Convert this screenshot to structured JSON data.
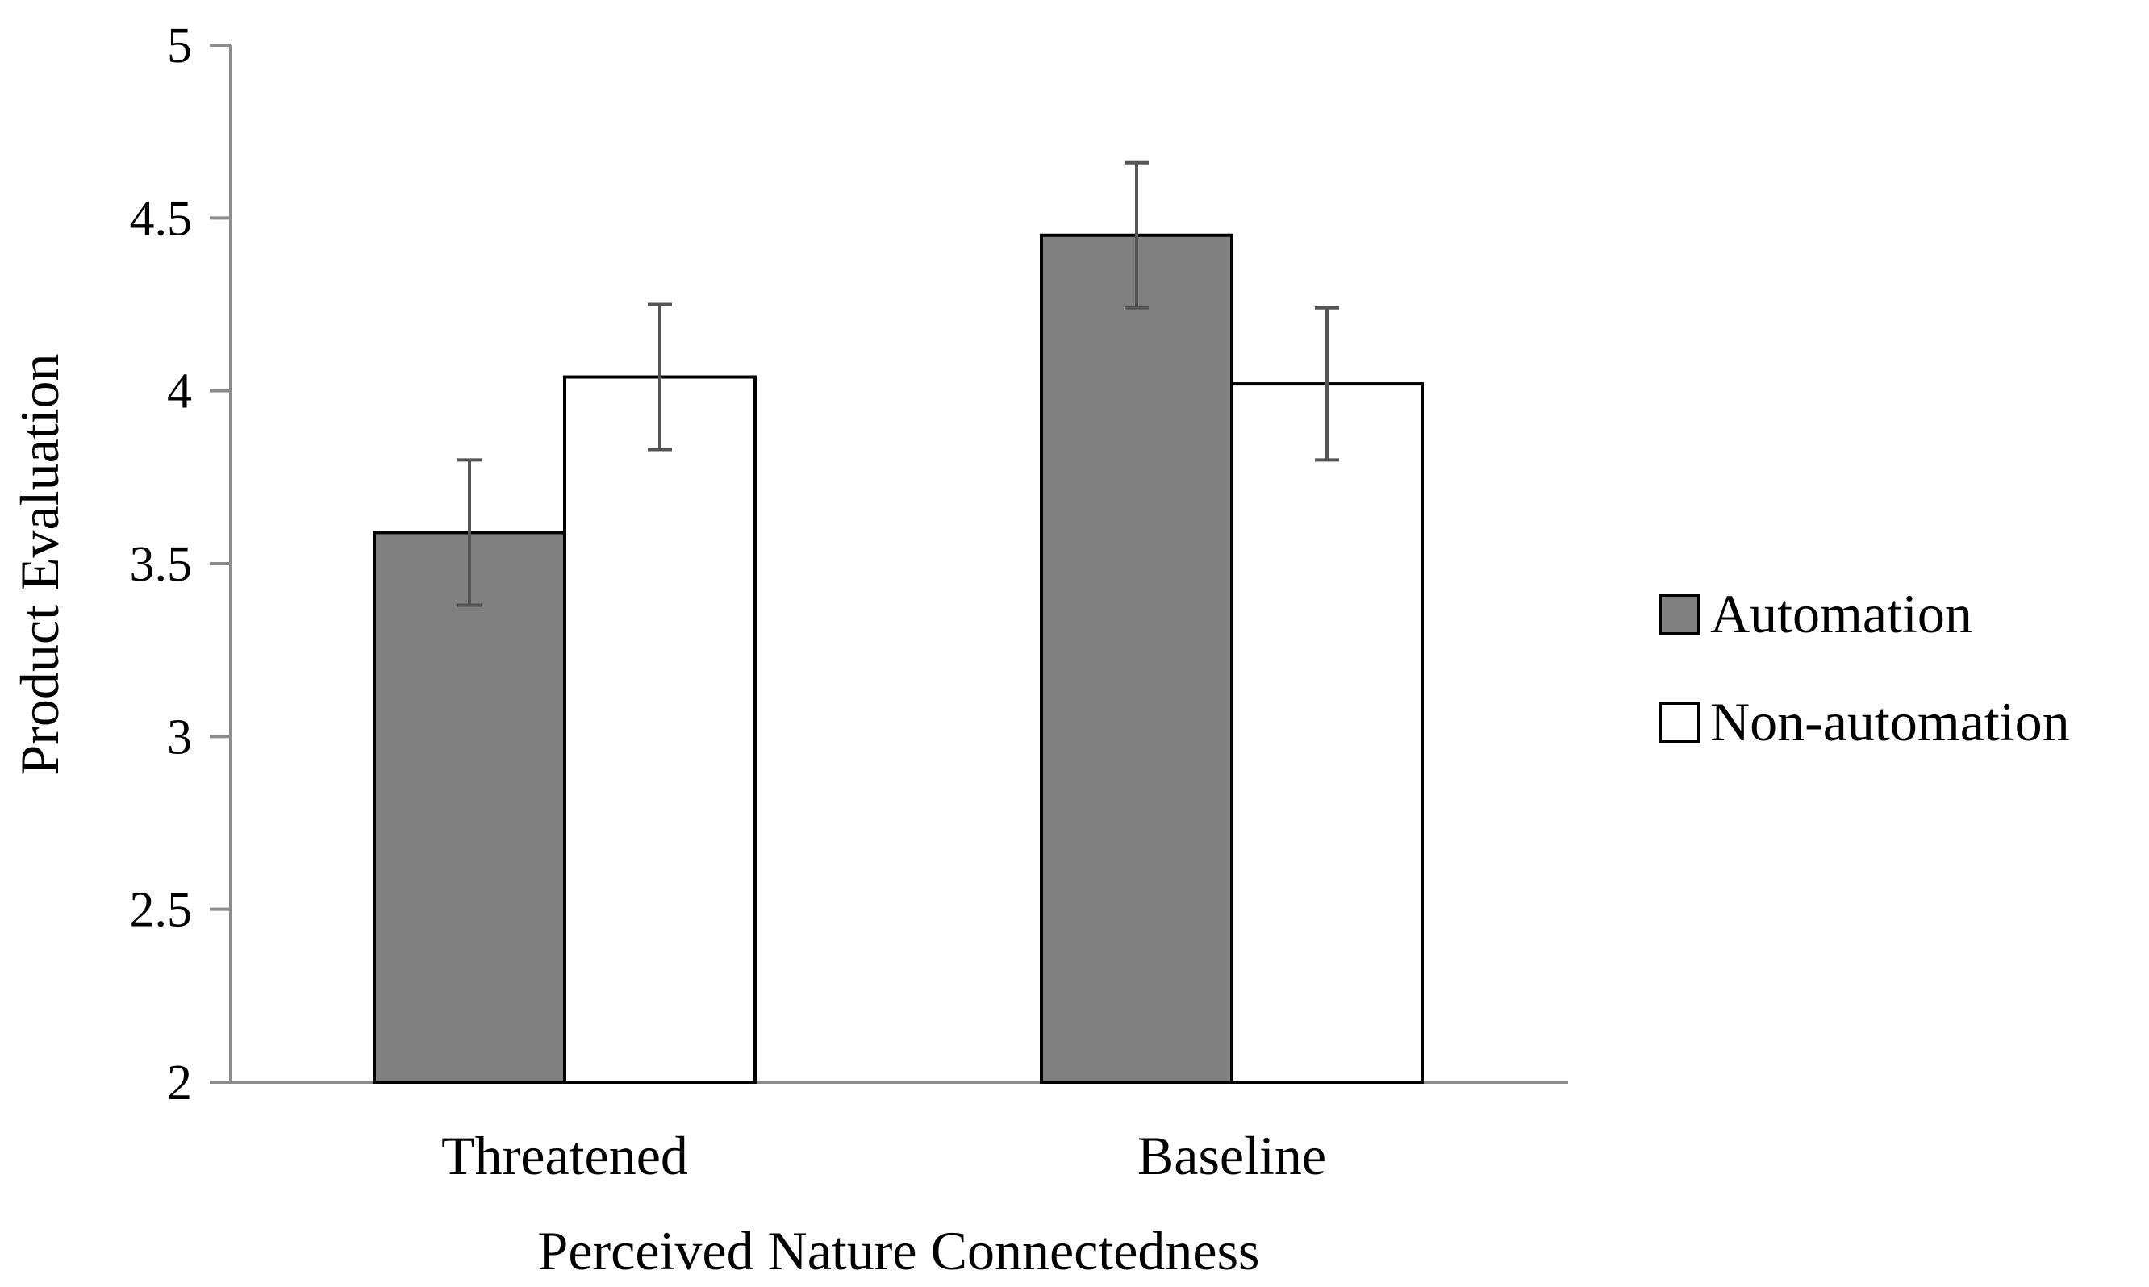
{
  "chart_data": {
    "type": "bar",
    "categories": [
      "Threatened",
      "Baseline"
    ],
    "series": [
      {
        "name": "Automation",
        "values": [
          3.59,
          4.45
        ],
        "errors": [
          0.21,
          0.21
        ],
        "color": "#808080"
      },
      {
        "name": "Non-automation",
        "values": [
          4.04,
          4.02
        ],
        "errors": [
          0.21,
          0.22
        ],
        "color": "#ffffff"
      }
    ],
    "xlabel": "Perceived Nature Connectedness",
    "ylabel": "Product Evaluation",
    "ylim": [
      2,
      5
    ],
    "yticks": [
      "2",
      "2.5",
      "3",
      "3.5",
      "4",
      "4.5",
      "5"
    ],
    "grid": false,
    "legend_position": "right"
  }
}
